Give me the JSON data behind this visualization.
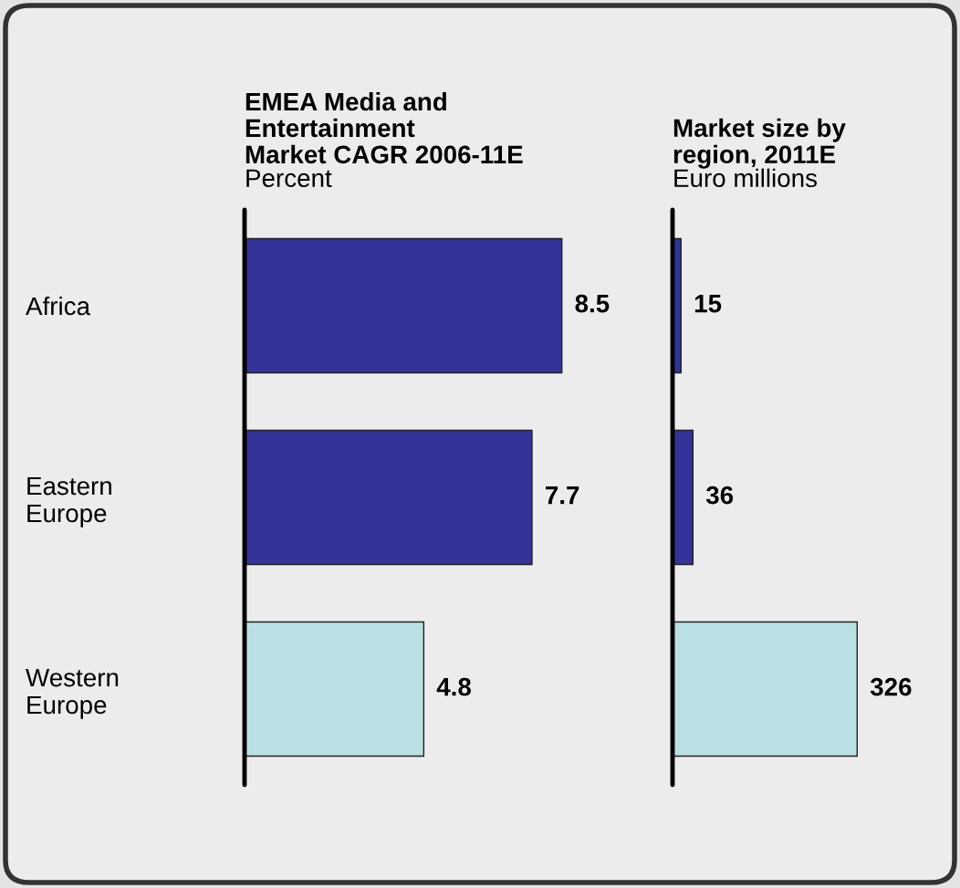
{
  "chart_data": [
    {
      "type": "bar",
      "orientation": "horizontal",
      "title": "EMEA Media and\nEntertainment\nMarket CAGR 2006-11E",
      "subtitle": "Percent",
      "categories": [
        "Africa",
        "Eastern\nEurope",
        "Western\nEurope"
      ],
      "values": [
        8.5,
        7.7,
        4.8
      ],
      "colors": [
        "#333399",
        "#333399",
        "#bbe0e3"
      ],
      "data_labels": true,
      "tick_labels": "y",
      "grid": false,
      "legend": false
    },
    {
      "type": "bar",
      "orientation": "horizontal",
      "title": "Market size by\nregion, 2011E",
      "subtitle": "Euro millions",
      "categories": [
        null,
        null,
        null
      ],
      "values": [
        15,
        36,
        326
      ],
      "colors": [
        "#333399",
        "#333399",
        "#bbe0e3"
      ],
      "data_labels": true,
      "tick_labels": false,
      "grid": false,
      "legend": false
    }
  ]
}
